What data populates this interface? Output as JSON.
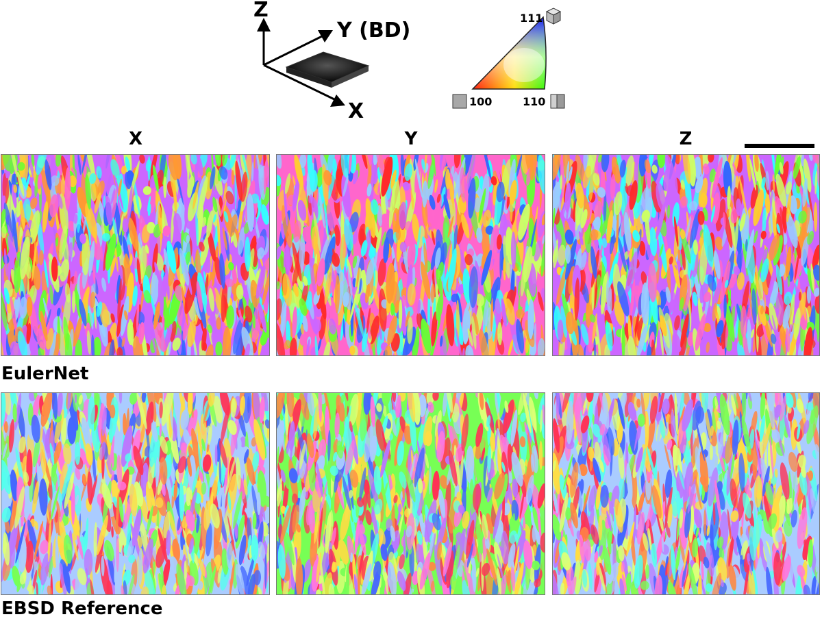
{
  "coordinate_frame": {
    "axis_z": "Z",
    "axis_y": "Y (BD)",
    "axis_x": "X"
  },
  "ipf_legend": {
    "corner_111": "111",
    "corner_100": "100",
    "corner_110": "110"
  },
  "columns": [
    "X",
    "Y",
    "Z"
  ],
  "rows": [
    {
      "label": "EulerNet",
      "palette": [
        "#ff2a2a",
        "#ff66cc",
        "#33ffff",
        "#66ff33",
        "#3366ff",
        "#ffcc33",
        "#cc66ff",
        "#ff9933",
        "#99ccff",
        "#ccff66"
      ]
    },
    {
      "label": "EBSD Reference",
      "palette": [
        "#ff3355",
        "#ff77dd",
        "#55ffee",
        "#77ff55",
        "#4466ff",
        "#ffdd44",
        "#bb77ff",
        "#ff8844",
        "#aaccff",
        "#ddff77"
      ]
    }
  ]
}
